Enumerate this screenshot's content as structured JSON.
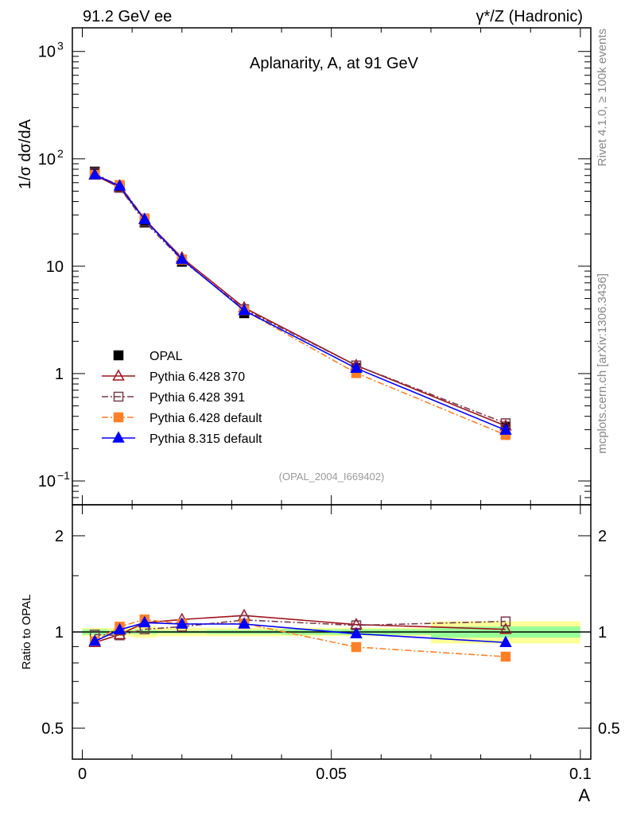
{
  "header": {
    "left": "91.2 GeV ee",
    "right": "γ*/Z (Hadronic)"
  },
  "side": {
    "rivet": "Rivet 4.1.0, ≥ 100k events",
    "mcplots": "mcplots.cern.ch [arXiv:1306.3436]"
  },
  "chart_data": [
    {
      "type": "line",
      "title": "Aplanarity, A, at 91 GeV",
      "analysis": "(OPAL_2004_I669402)",
      "xlabel": "A",
      "ylabel": "1/σ  dσ/dA",
      "yscale": "log",
      "xlim": [
        -0.002,
        0.1021
      ],
      "ylim": [
        0.06,
        1660
      ],
      "yticks": [
        {
          "v": 1000,
          "label": "10",
          "exp": "3"
        },
        {
          "v": 100,
          "label": "10",
          "exp": "2"
        },
        {
          "v": 10,
          "label": "10",
          "exp": ""
        },
        {
          "v": 1,
          "label": "1",
          "exp": ""
        },
        {
          "v": 0.1,
          "label": "10",
          "exp": "−1"
        }
      ],
      "x": [
        0.0025,
        0.0075,
        0.0125,
        0.02,
        0.0325,
        0.055,
        0.085
      ],
      "bin_edges": [
        0,
        0.005,
        0.01,
        0.015,
        0.025,
        0.04,
        0.07,
        0.1
      ],
      "data": {
        "name": "OPAL",
        "values": [
          76,
          55,
          25.5,
          11.0,
          3.65,
          1.13,
          0.32
        ]
      },
      "series": [
        {
          "name": "Pythia 6.428 370",
          "color": "#a0141e",
          "marker": "triangle-open",
          "dash": "",
          "values": [
            70.5,
            54.0,
            27.3,
            12.0,
            4.11,
            1.19,
            0.326
          ]
        },
        {
          "name": "Pythia 6.428 391",
          "color": "#7a3a4a",
          "marker": "square-open",
          "dash": "8,3,2,3",
          "values": [
            74.6,
            53.7,
            26.0,
            11.4,
            3.98,
            1.19,
            0.345
          ]
        },
        {
          "name": "Pythia 6.428 default",
          "color": "#ff7f27",
          "marker": "square",
          "dash": "8,3,2,3",
          "values": [
            71.1,
            57.1,
            27.9,
            11.6,
            3.88,
            1.01,
            0.268
          ]
        },
        {
          "name": "Pythia 8.315 default",
          "color": "#0000ff",
          "marker": "triangle",
          "dash": "",
          "values": [
            71.1,
            55.9,
            27.3,
            11.6,
            3.87,
            1.12,
            0.297
          ]
        }
      ]
    },
    {
      "type": "line",
      "ylabel": "Ratio to OPAL",
      "yscale": "log",
      "ylim": [
        0.4,
        2.5
      ],
      "yticks": [
        2,
        1,
        0.5
      ],
      "xticks": [
        0,
        0.05,
        0.1
      ],
      "xticklabels": [
        "0",
        "0.05",
        "0.1"
      ],
      "band_total": [
        0.03,
        0.03,
        0.04,
        0.03,
        0.03,
        0.03,
        0.08
      ],
      "band_stat": [
        0.02,
        0.012,
        0.015,
        0.01,
        0.015,
        0.02,
        0.04
      ],
      "ratios": [
        [
          0.927,
          0.981,
          1.069,
          1.094,
          1.126,
          1.055,
          1.019
        ],
        [
          0.981,
          0.976,
          1.019,
          1.039,
          1.09,
          1.049,
          1.079
        ],
        [
          0.935,
          1.039,
          1.094,
          1.059,
          1.063,
          0.897,
          0.837
        ],
        [
          0.935,
          1.016,
          1.069,
          1.059,
          1.059,
          0.987,
          0.927
        ]
      ]
    }
  ]
}
